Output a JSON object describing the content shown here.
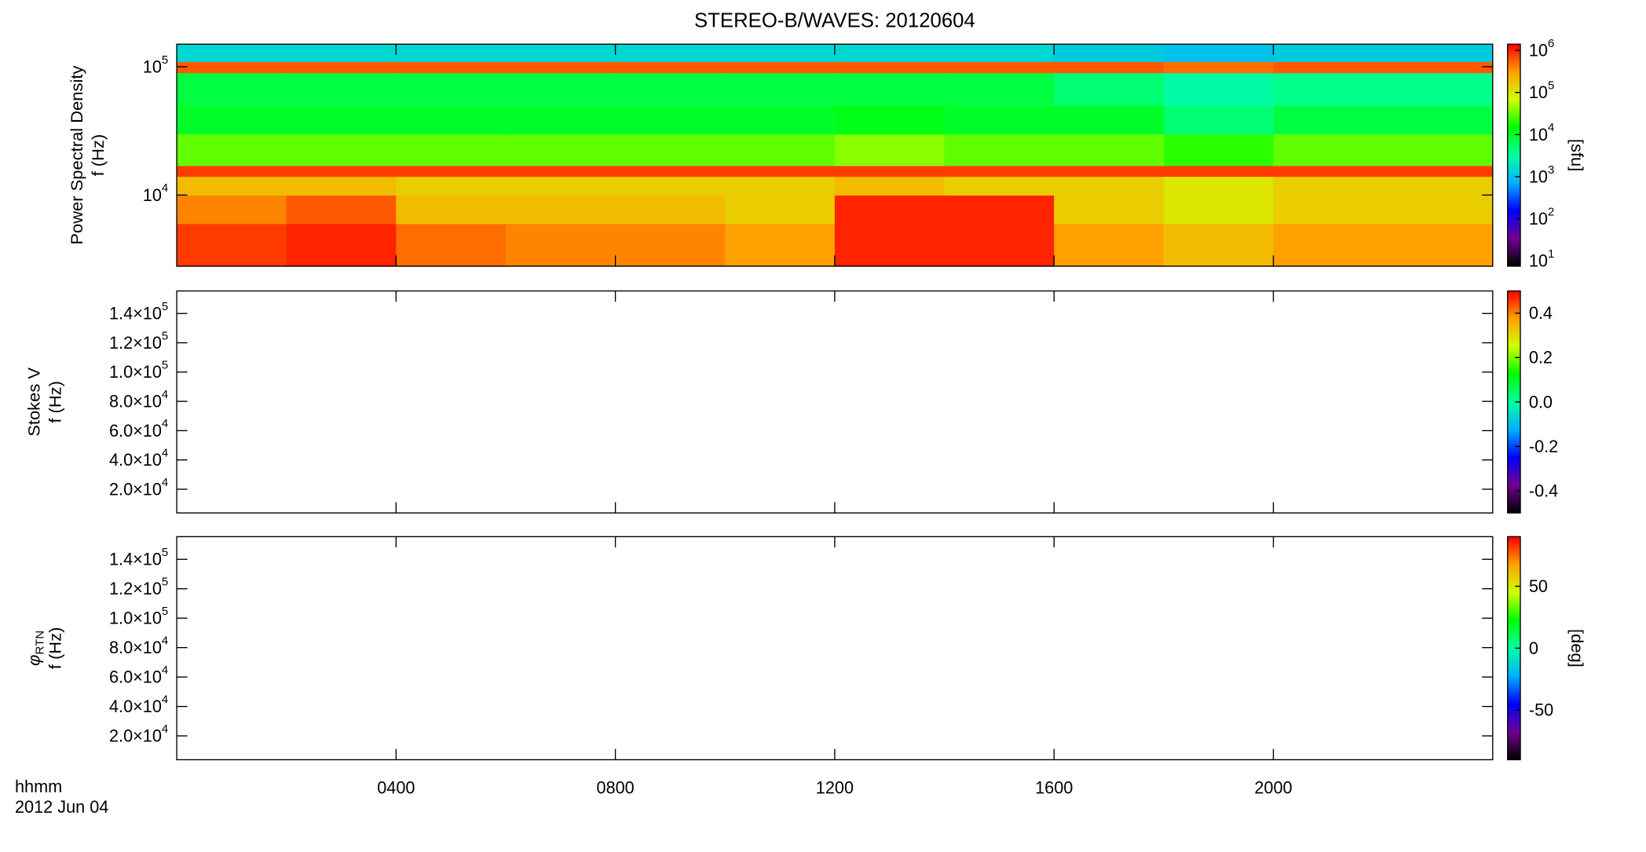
{
  "chart_data": [
    {
      "type": "heatmap",
      "title": "STEREO-B/WAVES: 20120604",
      "name": "Power Spectral Density",
      "ylabel": "f (Hz)",
      "ylog": true,
      "ylim": [
        2790,
        150000
      ],
      "yticks": [
        {
          "value": 10000,
          "label": "10",
          "sup": "4"
        },
        {
          "value": 100000,
          "label": "10",
          "sup": "5"
        }
      ],
      "xbins": [
        0,
        2,
        4,
        6,
        8,
        10,
        12,
        14,
        16,
        18,
        20,
        22,
        24
      ],
      "ybins": [
        2790,
        6000,
        10000,
        14000,
        17000,
        30000,
        50000,
        90000,
        110000,
        150000
      ],
      "values": [
        [
          800000,
          1000000,
          500000,
          400000,
          400000,
          300000,
          1000000,
          1000000,
          300000,
          200000,
          300000,
          300000
        ],
        [
          400000,
          600000,
          200000,
          200000,
          200000,
          150000,
          1000000,
          1000000,
          150000,
          100000,
          150000,
          150000
        ],
        [
          200000,
          200000,
          150000,
          150000,
          150000,
          150000,
          200000,
          150000,
          150000,
          100000,
          150000,
          150000
        ],
        [
          800000,
          800000,
          800000,
          800000,
          800000,
          800000,
          800000,
          800000,
          800000,
          800000,
          800000,
          800000
        ],
        [
          30000,
          30000,
          30000,
          30000,
          30000,
          30000,
          40000,
          30000,
          30000,
          20000,
          30000,
          30000
        ],
        [
          10000,
          10000,
          10000,
          10000,
          10000,
          10000,
          12000,
          10000,
          10000,
          5000,
          8000,
          8000
        ],
        [
          8000,
          8000,
          8000,
          8000,
          8000,
          8000,
          8000,
          8000,
          5000,
          3000,
          4000,
          4000
        ],
        [
          600000,
          600000,
          600000,
          600000,
          600000,
          600000,
          600000,
          600000,
          600000,
          500000,
          600000,
          600000
        ],
        [
          1500,
          1500,
          1500,
          1500,
          1500,
          1500,
          1500,
          1500,
          1200,
          1000,
          1200,
          1200
        ]
      ],
      "clog": true,
      "clim": [
        7.5,
        1400000
      ],
      "cticks": [
        {
          "value": 10,
          "label": "10",
          "sup": "1"
        },
        {
          "value": 100,
          "label": "10",
          "sup": "2"
        },
        {
          "value": 1000,
          "label": "10",
          "sup": "3"
        },
        {
          "value": 10000,
          "label": "10",
          "sup": "4"
        },
        {
          "value": 100000,
          "label": "10",
          "sup": "5"
        },
        {
          "value": 1000000,
          "label": "10",
          "sup": "6"
        }
      ],
      "clabel": "[sfu]",
      "colormap": [
        "#000000",
        "#700090",
        "#0000ff",
        "#00b0ff",
        "#00ffa0",
        "#00ff00",
        "#d0ff00",
        "#ffa000",
        "#ff0000"
      ]
    },
    {
      "type": "heatmap",
      "name": "Stokes V",
      "ylabel": "f (Hz)",
      "ylim": [
        3800,
        155400
      ],
      "yticks": [
        {
          "value": 20000,
          "label": "2.0×10",
          "sup": "4"
        },
        {
          "value": 40000,
          "label": "4.0×10",
          "sup": "4"
        },
        {
          "value": 60000,
          "label": "6.0×10",
          "sup": "4"
        },
        {
          "value": 80000,
          "label": "8.0×10",
          "sup": "4"
        },
        {
          "value": 100000,
          "label": "1.0×10",
          "sup": "5"
        },
        {
          "value": 120000,
          "label": "1.2×10",
          "sup": "5"
        },
        {
          "value": 140000,
          "label": "1.4×10",
          "sup": "5"
        }
      ],
      "clim": [
        -0.5,
        0.5
      ],
      "cticks": [
        -0.4,
        -0.2,
        {
          "value": 0,
          "label": "0.0"
        },
        0.2,
        0.4
      ]
    },
    {
      "type": "heatmap",
      "name": "φ",
      "name_sub": "RTN",
      "ylabel": "f (Hz)",
      "ylim": [
        3800,
        155400
      ],
      "yticks": [
        {
          "value": 20000,
          "label": "2.0×10",
          "sup": "4"
        },
        {
          "value": 40000,
          "label": "4.0×10",
          "sup": "4"
        },
        {
          "value": 60000,
          "label": "6.0×10",
          "sup": "4"
        },
        {
          "value": 80000,
          "label": "8.0×10",
          "sup": "4"
        },
        {
          "value": 100000,
          "label": "1.0×10",
          "sup": "5"
        },
        {
          "value": 120000,
          "label": "1.2×10",
          "sup": "5"
        },
        {
          "value": 140000,
          "label": "1.4×10",
          "sup": "5"
        }
      ],
      "clim": [
        -90,
        90
      ],
      "cticks": [
        -50,
        0,
        50
      ],
      "clabel": "[deg]",
      "xlabel": [
        "hhmm",
        "2012 Jun 04"
      ],
      "xlim": [
        0,
        24
      ],
      "xticks": [
        {
          "value": 4,
          "label": "0400"
        },
        {
          "value": 8,
          "label": "0800"
        },
        {
          "value": 12,
          "label": "1200"
        },
        {
          "value": 16,
          "label": "1600"
        },
        {
          "value": 20,
          "label": "2000"
        }
      ]
    }
  ]
}
